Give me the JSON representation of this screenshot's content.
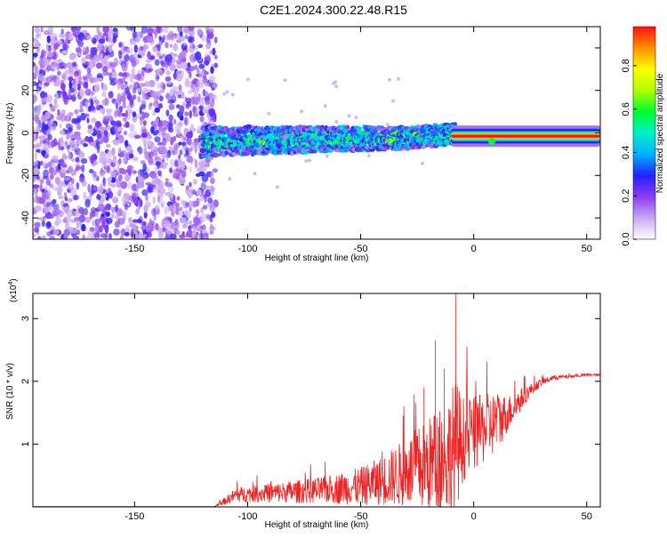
{
  "title": "C2E1.2024.300.22.48.R15",
  "chart_data": [
    {
      "id": "spectrogram",
      "type": "heatmap",
      "xlabel": "Height of straight line (km)",
      "ylabel": "Frequency (Hz)",
      "xlim": [
        -195,
        56
      ],
      "ylim": [
        -50,
        50
      ],
      "xticks": [
        -150,
        -100,
        -50,
        0,
        50
      ],
      "yticks": [
        -40,
        -20,
        0,
        20,
        40
      ],
      "grid": false,
      "colorbar": {
        "label": "Normalized spectral amplitude",
        "range": [
          0,
          1
        ],
        "ticks": [
          "0.0",
          "0.2",
          "0.4",
          "0.6",
          "0.8"
        ],
        "stops": [
          "#ffffff",
          "#c9a8f0",
          "#8c3cf0",
          "#2222ff",
          "#00b0ff",
          "#00f0c8",
          "#00ff30",
          "#b0ff00",
          "#ffff00",
          "#ff9000",
          "#ff1010"
        ]
      },
      "features": {
        "noise_region_x": [
          -195,
          -118
        ],
        "signal_band": {
          "x": [
            -120,
            56
          ],
          "freq_center_start": -4,
          "freq_center_end": -1
        }
      }
    },
    {
      "id": "snr",
      "type": "line",
      "xlabel": "Height of straight line (km)",
      "ylabel": "SNR (10 * v/v)",
      "multiplier": "(x10",
      "multiplier_exp": "4",
      "xlim": [
        -195,
        56
      ],
      "ylim": [
        0,
        3.4
      ],
      "xticks": [
        -150,
        -100,
        -50,
        0,
        50
      ],
      "yticks": [
        1,
        2,
        3
      ],
      "grid": false,
      "color": "#ee2222",
      "envelope": {
        "x": [
          -195,
          -115,
          -105,
          -95,
          -80,
          -65,
          -50,
          -40,
          -30,
          -20,
          -12,
          -8,
          -5,
          0,
          5,
          10,
          15,
          20,
          25,
          30,
          35,
          40,
          45,
          50,
          56
        ],
        "base": [
          0.0,
          0.0,
          0.18,
          0.2,
          0.22,
          0.25,
          0.3,
          0.38,
          0.5,
          0.6,
          0.7,
          0.85,
          1.0,
          1.1,
          1.2,
          1.3,
          1.45,
          1.65,
          1.85,
          1.98,
          2.05,
          2.07,
          2.08,
          2.1,
          2.1
        ],
        "amp": [
          0.0,
          0.0,
          0.12,
          0.14,
          0.18,
          0.22,
          0.3,
          0.4,
          0.55,
          0.75,
          0.95,
          1.1,
          0.7,
          0.6,
          0.55,
          0.5,
          0.3,
          0.2,
          0.1,
          0.06,
          0.04,
          0.03,
          0.02,
          0.02,
          0.02
        ]
      },
      "peaks": [
        {
          "x": -8,
          "y": 3.4
        },
        {
          "x": -17,
          "y": 2.65
        },
        {
          "x": -13,
          "y": 2.2
        },
        {
          "x": 10,
          "y": 1.58
        },
        {
          "x": -22,
          "y": 1.9
        }
      ]
    }
  ]
}
